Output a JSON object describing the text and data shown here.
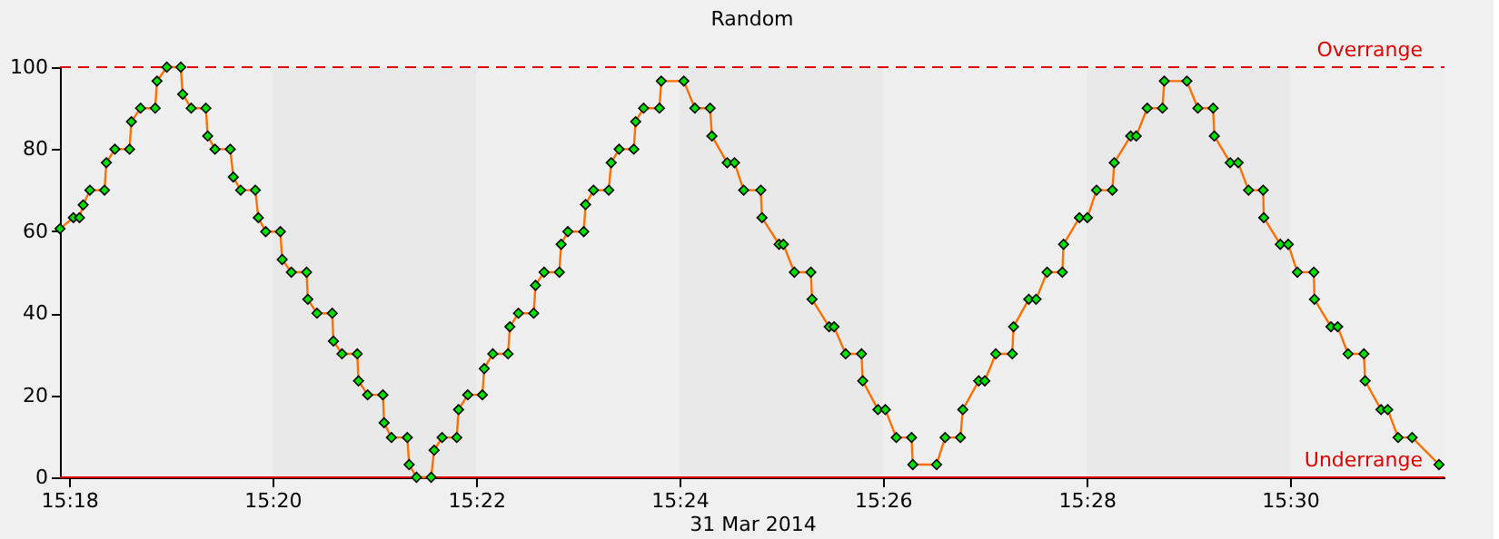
{
  "chart_data": {
    "type": "line",
    "title": "Random",
    "xlabel": "31 Mar 2014",
    "x": [
      15.2985,
      15.3007,
      15.3017,
      15.3023,
      15.3034,
      15.3058,
      15.3061,
      15.3075,
      15.3099,
      15.3102,
      15.3117,
      15.3141,
      15.3144,
      15.316,
      15.3183,
      15.3186,
      15.32,
      15.3224,
      15.3227,
      15.3239,
      15.3264,
      15.3269,
      15.3281,
      15.3305,
      15.331,
      15.3322,
      15.3346,
      15.3349,
      15.3364,
      15.3389,
      15.3391,
      15.3406,
      15.3431,
      15.3433,
      15.3447,
      15.3472,
      15.3474,
      15.3489,
      15.3514,
      15.3516,
      15.3528,
      15.3554,
      15.3557,
      15.3569,
      15.3593,
      15.3598,
      15.3611,
      15.3635,
      15.3638,
      15.3653,
      15.3677,
      15.368,
      15.3694,
      15.3719,
      15.3722,
      15.3736,
      15.3761,
      15.3764,
      15.3778,
      15.3803,
      15.3806,
      15.3817,
      15.3843,
      15.3846,
      15.3859,
      15.3884,
      15.3888,
      15.3901,
      15.3925,
      15.3928,
      15.3941,
      15.3967,
      15.397,
      15.4007,
      15.4025,
      15.405,
      15.4053,
      15.4078,
      15.409,
      15.4105,
      15.4133,
      15.4135,
      15.4163,
      15.417,
      15.4188,
      15.4215,
      15.4217,
      15.4245,
      15.4253,
      15.4272,
      15.4298,
      15.43,
      15.4325,
      15.4337,
      15.4355,
      15.438,
      15.4382,
      15.4421,
      15.4435,
      15.446,
      15.4464,
      15.449,
      15.45,
      15.4518,
      15.4545,
      15.4547,
      15.4572,
      15.4584,
      15.4602,
      15.4627,
      15.4629,
      15.4655,
      15.4668,
      15.4683,
      15.4709,
      15.4712,
      15.4739,
      15.4748,
      15.4766,
      15.4791,
      15.4794,
      15.4831,
      15.4849,
      15.4874,
      15.4876,
      15.4902,
      15.4915,
      15.4932,
      15.4956,
      15.4957,
      15.4984,
      15.4997,
      15.5012,
      15.5039,
      15.504,
      15.5067,
      15.5078,
      15.5095,
      15.5121,
      15.5123,
      15.5149,
      15.516,
      15.5177,
      15.52,
      15.5244
    ],
    "series": [
      {
        "color": "#ff7000",
        "values": [
          60.6,
          63.3,
          63.3,
          66.4,
          70,
          70,
          76.7,
          80,
          80,
          86.7,
          90,
          90,
          96.6,
          100,
          100,
          93.4,
          90,
          90,
          83.2,
          80,
          80,
          73.2,
          70,
          70,
          63.3,
          59.9,
          59.9,
          53.1,
          50,
          50,
          43.4,
          40,
          40,
          33.2,
          30.1,
          30.1,
          23.5,
          20.1,
          20.1,
          13.3,
          9.7,
          9.7,
          3.1,
          0,
          0,
          6.6,
          9.7,
          9.7,
          16.5,
          20.1,
          20.1,
          26.5,
          30.1,
          30.1,
          36.7,
          40,
          40,
          46.8,
          50,
          50,
          56.8,
          59.9,
          59.9,
          66.5,
          70,
          70,
          76.7,
          80,
          80,
          86.7,
          90,
          90,
          96.6,
          96.6,
          90,
          90,
          83.2,
          76.7,
          76.7,
          70,
          70,
          63.3,
          56.8,
          56.8,
          50,
          50,
          43.4,
          36.7,
          36.7,
          30.1,
          30.1,
          23.5,
          16.5,
          16.5,
          9.7,
          9.7,
          3.1,
          3.1,
          9.7,
          9.7,
          16.5,
          23.5,
          23.5,
          30.1,
          30.1,
          36.7,
          43.4,
          43.4,
          50,
          50,
          56.8,
          63.3,
          63.3,
          70,
          70,
          76.7,
          83.2,
          83.2,
          90,
          90,
          96.6,
          96.6,
          90,
          90,
          83.2,
          76.7,
          76.7,
          70,
          70,
          63.3,
          56.8,
          56.8,
          50,
          50,
          43.4,
          36.7,
          36.7,
          30.1,
          30.1,
          23.5,
          16.5,
          16.5,
          9.7,
          9.7,
          3.1
        ]
      }
    ],
    "xlim": [
      15.2985,
      15.5253
    ],
    "xticks": [
      {
        "value": 15.3,
        "label": "15:18"
      },
      {
        "value": 15.3333,
        "label": "15:20"
      },
      {
        "value": 15.3667,
        "label": "15:22"
      },
      {
        "value": 15.4,
        "label": "15:24"
      },
      {
        "value": 15.4333,
        "label": "15:26"
      },
      {
        "value": 15.4667,
        "label": "15:28"
      },
      {
        "value": 15.5,
        "label": "15:30"
      }
    ],
    "ylim": [
      0,
      100
    ],
    "yticks": [
      0,
      20,
      40,
      60,
      80,
      100
    ],
    "bands": [
      {
        "axis": "x",
        "from": 15.3333,
        "to": 15.3667,
        "color": "#e9e9e9"
      },
      {
        "axis": "x",
        "from": 15.4,
        "to": 15.4333,
        "color": "#e9e9e9"
      },
      {
        "axis": "x",
        "from": 15.4667,
        "to": 15.5,
        "color": "#e9e9e9"
      }
    ],
    "ref_lines": [
      {
        "axis": "y",
        "value": 100,
        "label": "Overrange",
        "color": "#e00000",
        "line_style": "dashed"
      },
      {
        "axis": "y",
        "value": 0,
        "label": "Underrange",
        "color": "#e00000",
        "line_style": "solid"
      }
    ],
    "marker": "diamond",
    "line_style": "solid",
    "grid": false
  }
}
